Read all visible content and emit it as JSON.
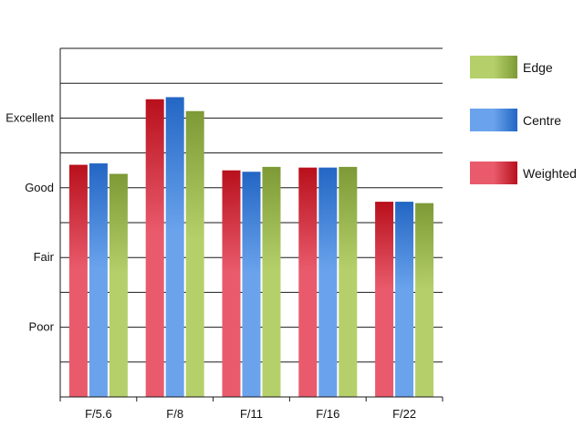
{
  "chart_data": {
    "type": "bar",
    "title": "",
    "xlabel": "",
    "ylabel": "",
    "categories": [
      "F/5.6",
      "F/8",
      "F/11",
      "F/16",
      "F/22"
    ],
    "y_tick_labels": [
      "Poor",
      "Fair",
      "Good",
      "Excellent"
    ],
    "y_tick_values": [
      1,
      2,
      3,
      4
    ],
    "ylim": [
      0,
      5
    ],
    "grid": true,
    "legend_position": "right",
    "series": [
      {
        "name": "Weighted",
        "values": [
          3.33,
          4.27,
          3.25,
          3.29,
          2.8
        ],
        "color_light": "#e95b6c",
        "color_dark": "#b8101c"
      },
      {
        "name": "Centre",
        "values": [
          3.35,
          4.3,
          3.23,
          3.29,
          2.8
        ],
        "color_light": "#6aa3ec",
        "color_dark": "#2366c4"
      },
      {
        "name": "Edge",
        "values": [
          3.2,
          4.1,
          3.3,
          3.3,
          2.78
        ],
        "color_light": "#b5d06a",
        "color_dark": "#7d9a36"
      }
    ],
    "legend_order": [
      "Edge",
      "Centre",
      "Weighted"
    ]
  }
}
